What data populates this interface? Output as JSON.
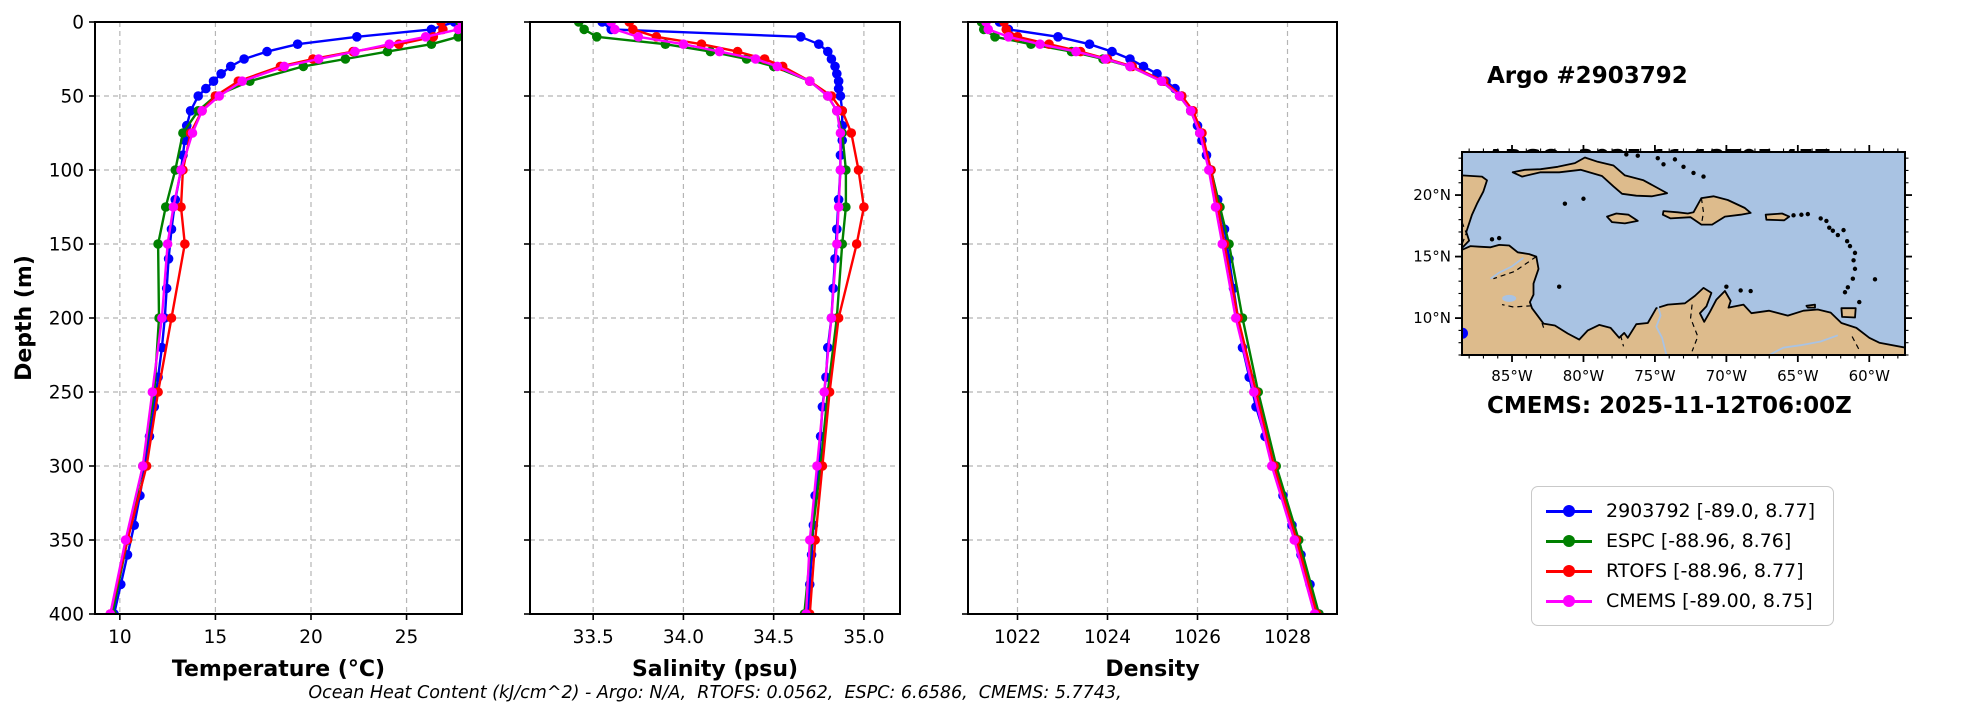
{
  "header": {
    "title_lines": [
      "Argo #2903792",
      "ARGO: 2025-11-12T05:45Z",
      "ESPC : 2025-11-12T06:00Z",
      "RTOFS: 2025-11-12T00:00Z",
      "CMEMS: 2025-11-12T06:00Z"
    ]
  },
  "caption": "Ocean Heat Content (kJ/cm^2) - Argo: N/A,  RTOFS: 0.0562,  ESPC: 6.6586,  CMEMS: 5.7743,",
  "colors": {
    "argo": "#0000ff",
    "espc": "#008000",
    "rtofs": "#ff0000",
    "cmems": "#ff00ff",
    "ocean": "#a9c3e3",
    "land": "#ddbb8c"
  },
  "legend": {
    "items": [
      {
        "label": "2903792 [-89.0, 8.77]",
        "color": "#0000ff"
      },
      {
        "label": "ESPC [-88.96, 8.76]",
        "color": "#008000"
      },
      {
        "label": "RTOFS [-88.96, 8.77]",
        "color": "#ff0000"
      },
      {
        "label": "CMEMS [-89.00, 8.75]",
        "color": "#ff00ff"
      }
    ]
  },
  "map": {
    "lat_tick_labels": [
      "20°N",
      "15°N",
      "10°N"
    ],
    "lat_tick_values": [
      20,
      15,
      10
    ],
    "lon_tick_labels": [
      "85°W",
      "80°W",
      "75°W",
      "70°W",
      "65°W",
      "60°W"
    ],
    "lon_tick_values": [
      -85,
      -80,
      -75,
      -70,
      -65,
      -60
    ],
    "lon_range": [
      -88.5,
      -57.5
    ],
    "lat_range": [
      7.0,
      23.5
    ],
    "marker": {
      "lon": -89.0,
      "lat": 8.77,
      "color": "#0000ff"
    }
  },
  "chart_data": [
    {
      "type": "line",
      "name": "temperature",
      "xlabel": "Temperature (°C)",
      "ylabel": "Depth (m)",
      "xlim": [
        8.7,
        27.9
      ],
      "ylim": [
        0,
        400
      ],
      "x_ticks": [
        10,
        15,
        20,
        25
      ],
      "x_tick_labels": [
        "10",
        "15",
        "20",
        "25"
      ],
      "y_ticks": [
        0,
        50,
        100,
        150,
        200,
        250,
        300,
        350,
        400
      ],
      "grid": true,
      "series": [
        {
          "name": "2903792",
          "color": "#0000ff",
          "depths": [
            0,
            5,
            10,
            15,
            20,
            25,
            30,
            35,
            40,
            45,
            50,
            60,
            70,
            80,
            90,
            100,
            120,
            140,
            160,
            180,
            200,
            220,
            240,
            260,
            280,
            300,
            320,
            340,
            360,
            380,
            400
          ],
          "values": [
            27.5,
            26.3,
            22.4,
            19.3,
            17.7,
            16.5,
            15.8,
            15.3,
            14.9,
            14.5,
            14.1,
            13.7,
            13.5,
            13.4,
            13.3,
            13.2,
            12.9,
            12.7,
            12.55,
            12.45,
            12.35,
            12.2,
            12.0,
            11.8,
            11.55,
            11.3,
            11.05,
            10.75,
            10.4,
            10.05,
            9.7
          ]
        },
        {
          "name": "ESPC",
          "color": "#008000",
          "depths": [
            0,
            5,
            10,
            15,
            20,
            25,
            30,
            40,
            50,
            60,
            75,
            100,
            125,
            150,
            200,
            250,
            300,
            350,
            400
          ],
          "values": [
            27.8,
            27.8,
            27.7,
            26.3,
            24.0,
            21.8,
            19.6,
            16.8,
            15.0,
            14.1,
            13.3,
            12.9,
            12.4,
            12.0,
            12.05,
            11.8,
            11.2,
            10.4,
            9.6
          ]
        },
        {
          "name": "RTOFS",
          "color": "#ff0000",
          "depths": [
            0,
            5,
            10,
            15,
            20,
            25,
            30,
            40,
            50,
            60,
            75,
            100,
            125,
            150,
            200,
            250,
            300,
            350,
            400
          ],
          "values": [
            26.8,
            26.9,
            26.4,
            24.6,
            22.2,
            20.1,
            18.4,
            16.2,
            15.0,
            14.3,
            13.7,
            13.3,
            13.2,
            13.4,
            12.7,
            12.0,
            11.4,
            10.4,
            9.5
          ]
        },
        {
          "name": "CMEMS",
          "color": "#ff00ff",
          "depths": [
            0,
            5,
            10,
            15,
            20,
            25,
            30,
            40,
            50,
            60,
            75,
            100,
            125,
            150,
            200,
            250,
            300,
            350,
            400
          ],
          "values": [
            27.9,
            27.7,
            26.0,
            24.1,
            22.3,
            20.4,
            18.6,
            16.4,
            15.2,
            14.3,
            13.8,
            13.2,
            12.8,
            12.5,
            12.2,
            11.7,
            11.2,
            10.3,
            9.5
          ]
        }
      ]
    },
    {
      "type": "line",
      "name": "salinity",
      "xlabel": "Salinity (psu)",
      "ylabel": "Depth (m)",
      "xlim": [
        33.15,
        35.2
      ],
      "ylim": [
        0,
        400
      ],
      "x_ticks": [
        33.5,
        34.0,
        34.5,
        35.0
      ],
      "x_tick_labels": [
        "33.5",
        "34.0",
        "34.5",
        "35.0"
      ],
      "y_ticks": [
        0,
        50,
        100,
        150,
        200,
        250,
        300,
        350,
        400
      ],
      "grid": true,
      "series": [
        {
          "name": "2903792",
          "color": "#0000ff",
          "depths": [
            0,
            5,
            10,
            15,
            20,
            25,
            30,
            35,
            40,
            45,
            50,
            60,
            70,
            80,
            90,
            100,
            120,
            140,
            160,
            180,
            200,
            220,
            240,
            260,
            280,
            300,
            320,
            340,
            360,
            380,
            400
          ],
          "values": [
            33.55,
            33.6,
            34.65,
            34.75,
            34.8,
            34.82,
            34.84,
            34.85,
            34.86,
            34.86,
            34.87,
            34.88,
            34.88,
            34.88,
            34.87,
            34.87,
            34.86,
            34.85,
            34.84,
            34.83,
            34.82,
            34.8,
            34.79,
            34.77,
            34.76,
            34.75,
            34.73,
            34.72,
            34.71,
            34.7,
            34.69
          ]
        },
        {
          "name": "ESPC",
          "color": "#008000",
          "depths": [
            0,
            5,
            10,
            15,
            20,
            25,
            30,
            40,
            50,
            60,
            75,
            100,
            125,
            150,
            200,
            250,
            300,
            350,
            400
          ],
          "values": [
            33.42,
            33.45,
            33.52,
            33.9,
            34.15,
            34.35,
            34.5,
            34.7,
            34.8,
            34.85,
            34.88,
            34.9,
            34.9,
            34.88,
            34.85,
            34.8,
            34.76,
            34.71,
            34.67
          ]
        },
        {
          "name": "RTOFS",
          "color": "#ff0000",
          "depths": [
            0,
            5,
            10,
            15,
            20,
            25,
            30,
            40,
            50,
            60,
            75,
            100,
            125,
            150,
            200,
            250,
            300,
            350,
            400
          ],
          "values": [
            33.7,
            33.72,
            33.85,
            34.1,
            34.3,
            34.45,
            34.55,
            34.7,
            34.82,
            34.88,
            34.93,
            34.97,
            35.0,
            34.96,
            34.86,
            34.81,
            34.77,
            34.73,
            34.7
          ]
        },
        {
          "name": "CMEMS",
          "color": "#ff00ff",
          "depths": [
            0,
            5,
            10,
            15,
            20,
            25,
            30,
            40,
            50,
            60,
            75,
            100,
            125,
            150,
            200,
            250,
            300,
            350,
            400
          ],
          "values": [
            33.6,
            33.62,
            33.75,
            34.0,
            34.2,
            34.4,
            34.52,
            34.7,
            34.8,
            34.85,
            34.87,
            34.87,
            34.86,
            34.85,
            34.82,
            34.78,
            34.74,
            34.7,
            34.68
          ]
        }
      ]
    },
    {
      "type": "line",
      "name": "density",
      "xlabel": "Density",
      "ylabel": "Depth (m)",
      "xlim": [
        1020.9,
        1029.1
      ],
      "ylim": [
        0,
        400
      ],
      "x_ticks": [
        1022,
        1024,
        1026,
        1028
      ],
      "x_tick_labels": [
        "1022",
        "1024",
        "1026",
        "1028"
      ],
      "y_ticks": [
        0,
        50,
        100,
        150,
        200,
        250,
        300,
        350,
        400
      ],
      "grid": true,
      "series": [
        {
          "name": "2903792",
          "color": "#0000ff",
          "depths": [
            0,
            5,
            10,
            15,
            20,
            25,
            30,
            35,
            40,
            45,
            50,
            60,
            70,
            80,
            90,
            100,
            120,
            140,
            160,
            180,
            200,
            220,
            240,
            260,
            280,
            300,
            320,
            340,
            360,
            380,
            400
          ],
          "values": [
            1021.6,
            1021.8,
            1022.9,
            1023.6,
            1024.1,
            1024.5,
            1024.8,
            1025.1,
            1025.3,
            1025.5,
            1025.65,
            1025.85,
            1026.0,
            1026.1,
            1026.2,
            1026.3,
            1026.45,
            1026.6,
            1026.7,
            1026.8,
            1026.9,
            1027.0,
            1027.15,
            1027.3,
            1027.5,
            1027.7,
            1027.9,
            1028.1,
            1028.3,
            1028.5,
            1028.7
          ]
        },
        {
          "name": "ESPC",
          "color": "#008000",
          "depths": [
            0,
            5,
            10,
            15,
            20,
            25,
            30,
            40,
            50,
            60,
            75,
            100,
            125,
            150,
            200,
            250,
            300,
            350,
            400
          ],
          "values": [
            1021.2,
            1021.25,
            1021.5,
            1022.3,
            1023.2,
            1023.9,
            1024.5,
            1025.2,
            1025.6,
            1025.85,
            1026.05,
            1026.3,
            1026.5,
            1026.7,
            1027.0,
            1027.35,
            1027.75,
            1028.25,
            1028.7
          ]
        },
        {
          "name": "RTOFS",
          "color": "#ff0000",
          "depths": [
            0,
            5,
            10,
            15,
            20,
            25,
            30,
            40,
            50,
            60,
            75,
            100,
            125,
            150,
            200,
            250,
            300,
            350,
            400
          ],
          "values": [
            1021.7,
            1021.75,
            1022.0,
            1022.7,
            1023.4,
            1024.0,
            1024.55,
            1025.25,
            1025.65,
            1025.9,
            1026.1,
            1026.3,
            1026.45,
            1026.6,
            1026.9,
            1027.3,
            1027.7,
            1028.2,
            1028.65
          ]
        },
        {
          "name": "CMEMS",
          "color": "#ff00ff",
          "depths": [
            0,
            5,
            10,
            15,
            20,
            25,
            30,
            40,
            50,
            60,
            75,
            100,
            125,
            150,
            200,
            250,
            300,
            350,
            400
          ],
          "values": [
            1021.3,
            1021.35,
            1021.8,
            1022.5,
            1023.3,
            1023.95,
            1024.5,
            1025.2,
            1025.6,
            1025.85,
            1026.05,
            1026.25,
            1026.4,
            1026.55,
            1026.85,
            1027.25,
            1027.65,
            1028.15,
            1028.6
          ]
        }
      ]
    }
  ]
}
